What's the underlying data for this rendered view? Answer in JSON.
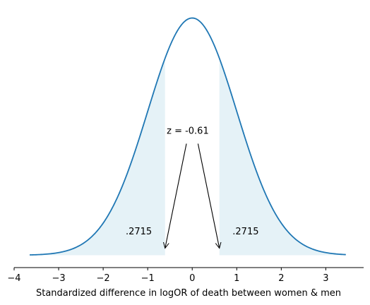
{
  "chart_data": {
    "type": "area",
    "title": "",
    "xlabel": "Standardized difference in logOR of death between women & men",
    "ylabel": "",
    "xlim": [
      -4,
      3.85
    ],
    "x_ticks": [
      -4,
      -3,
      -2,
      -1,
      0,
      1,
      2,
      3
    ],
    "x_tick_labels": [
      "−4",
      "−3",
      "−2",
      "−1",
      "0",
      "1",
      "2",
      "3"
    ],
    "grid": false,
    "curve": {
      "distribution": "standard-normal",
      "x_start": -3.65,
      "x_end": 3.45,
      "color": "#1f77b4"
    },
    "shaded_regions": [
      {
        "x_from": -3.65,
        "x_to": -0.61,
        "color": "#add8e6",
        "label": ".2715",
        "label_x": -1.2,
        "label_y": 0.035
      },
      {
        "x_from": 0.61,
        "x_to": 3.45,
        "color": "#add8e6",
        "label": ".2715",
        "label_x": 1.2,
        "label_y": 0.035
      }
    ],
    "annotation": {
      "text": "z = -0.61",
      "text_x": -0.1,
      "text_y": 0.21,
      "arrow_targets": [
        {
          "from_x": -0.13,
          "from_y": 0.19,
          "to_x": -0.61,
          "to_y": 0.0
        },
        {
          "from_x": 0.13,
          "from_y": 0.19,
          "to_x": 0.61,
          "to_y": 0.0
        }
      ]
    }
  }
}
